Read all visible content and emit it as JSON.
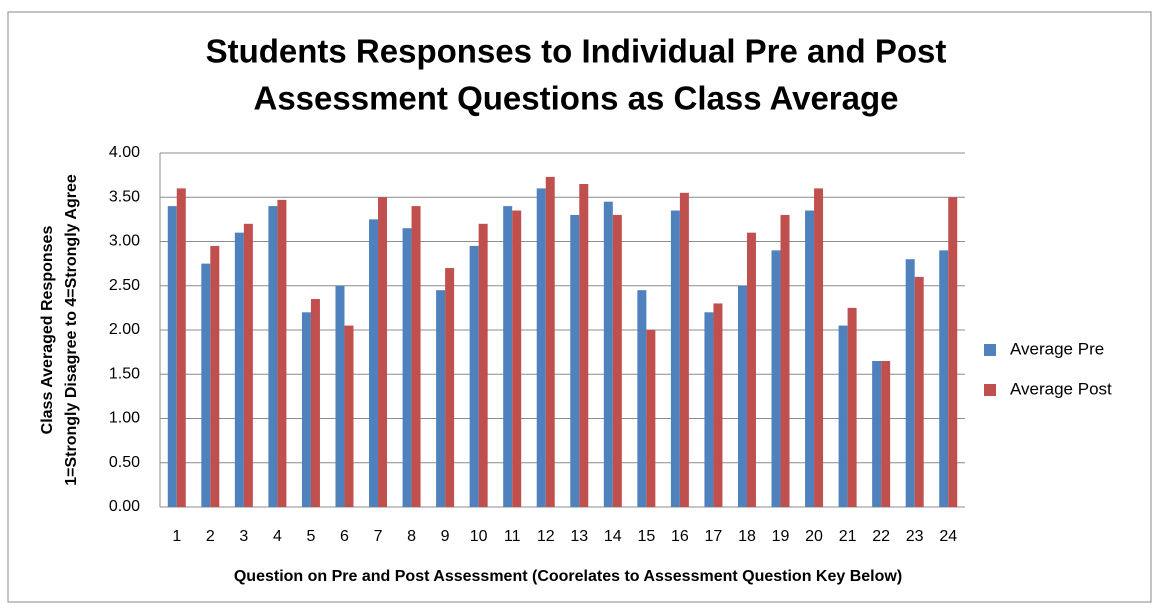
{
  "chart_data": {
    "type": "bar",
    "title_lines": [
      "Students Responses to Individual Pre and Post",
      "Assessment Questions as Class Average"
    ],
    "x_label": "Question on Pre and Post Assessment (Coorelates to Assessment Question Key Below)",
    "y_label_lines": [
      "Class Averaged Responses",
      "1=Strongly Disagree to 4=Strongly Agree"
    ],
    "categories": [
      "1",
      "2",
      "3",
      "4",
      "5",
      "6",
      "7",
      "8",
      "9",
      "10",
      "11",
      "12",
      "13",
      "14",
      "15",
      "16",
      "17",
      "18",
      "19",
      "20",
      "21",
      "22",
      "23",
      "24"
    ],
    "series": [
      {
        "name": "Average Pre",
        "color": "#4f81bd",
        "values": [
          3.4,
          2.75,
          3.1,
          3.4,
          2.2,
          2.5,
          3.25,
          3.15,
          2.45,
          2.95,
          3.4,
          3.6,
          3.3,
          3.45,
          2.45,
          3.35,
          2.2,
          2.5,
          2.9,
          3.35,
          2.05,
          1.65,
          2.8,
          2.9
        ]
      },
      {
        "name": "Average Post",
        "color": "#c0504d",
        "values": [
          3.6,
          2.95,
          3.2,
          3.47,
          2.35,
          2.05,
          3.5,
          3.4,
          2.7,
          3.2,
          3.35,
          3.73,
          3.65,
          3.3,
          2.0,
          3.55,
          2.3,
          3.1,
          3.3,
          3.6,
          2.25,
          1.65,
          2.6,
          3.5
        ]
      }
    ],
    "ylim": [
      0,
      4
    ],
    "yticks": [
      {
        "value": 0,
        "label": "0.00"
      },
      {
        "value": 0.5,
        "label": "0.50"
      },
      {
        "value": 1,
        "label": "1.00"
      },
      {
        "value": 1.5,
        "label": "1.50"
      },
      {
        "value": 2,
        "label": "2.00"
      },
      {
        "value": 2.5,
        "label": "2.50"
      },
      {
        "value": 3,
        "label": "3.00"
      },
      {
        "value": 3.5,
        "label": "3.50"
      },
      {
        "value": 4,
        "label": "4.00"
      }
    ],
    "grid": true,
    "legend": "right"
  }
}
